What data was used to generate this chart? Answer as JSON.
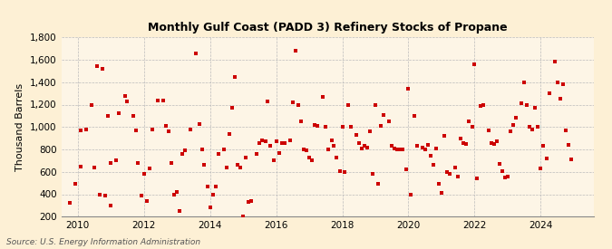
{
  "title": "Monthly Gulf Coast (PADD 3) Refinery Stocks of Propane",
  "ylabel": "Thousand Barrels",
  "source": "Source: U.S. Energy Information Administration",
  "background_color": "#fdf0d5",
  "plot_background_color": "#fdf5e6",
  "marker_color": "#cc0000",
  "marker": "s",
  "marker_size": 3.5,
  "ylim": [
    200,
    1800
  ],
  "yticks": [
    200,
    400,
    600,
    800,
    1000,
    1200,
    1400,
    1600,
    1800
  ],
  "xlim_start": 2009.5,
  "xlim_end": 2025.6,
  "xticks": [
    2010,
    2012,
    2014,
    2016,
    2018,
    2020,
    2022,
    2024
  ],
  "data": [
    [
      2009.75,
      320
    ],
    [
      2009.92,
      490
    ],
    [
      2010.08,
      650
    ],
    [
      2010.25,
      975
    ],
    [
      2010.42,
      1200
    ],
    [
      2010.58,
      1540
    ],
    [
      2010.75,
      1520
    ],
    [
      2010.92,
      1100
    ],
    [
      2010.08,
      970
    ],
    [
      2010.5,
      640
    ],
    [
      2010.67,
      400
    ],
    [
      2010.83,
      390
    ],
    [
      2011.0,
      680
    ],
    [
      2011.17,
      700
    ],
    [
      2011.25,
      1120
    ],
    [
      2011.42,
      1280
    ],
    [
      2011.5,
      1230
    ],
    [
      2011.67,
      1100
    ],
    [
      2011.75,
      970
    ],
    [
      2011.83,
      680
    ],
    [
      2011.92,
      390
    ],
    [
      2011.0,
      300
    ],
    [
      2012.0,
      580
    ],
    [
      2012.17,
      630
    ],
    [
      2012.25,
      980
    ],
    [
      2012.42,
      1240
    ],
    [
      2012.58,
      1240
    ],
    [
      2012.67,
      1010
    ],
    [
      2012.75,
      960
    ],
    [
      2012.83,
      680
    ],
    [
      2012.92,
      400
    ],
    [
      2012.08,
      340
    ],
    [
      2013.0,
      420
    ],
    [
      2013.17,
      760
    ],
    [
      2013.25,
      790
    ],
    [
      2013.42,
      980
    ],
    [
      2013.58,
      1660
    ],
    [
      2013.67,
      1030
    ],
    [
      2013.75,
      800
    ],
    [
      2013.83,
      660
    ],
    [
      2013.92,
      470
    ],
    [
      2013.08,
      250
    ],
    [
      2014.0,
      280
    ],
    [
      2014.17,
      470
    ],
    [
      2014.25,
      760
    ],
    [
      2014.42,
      800
    ],
    [
      2014.5,
      640
    ],
    [
      2014.58,
      940
    ],
    [
      2014.67,
      1170
    ],
    [
      2014.75,
      1450
    ],
    [
      2014.83,
      660
    ],
    [
      2014.92,
      640
    ],
    [
      2014.08,
      400
    ],
    [
      2015.0,
      200
    ],
    [
      2015.17,
      330
    ],
    [
      2015.25,
      340
    ],
    [
      2015.42,
      760
    ],
    [
      2015.5,
      860
    ],
    [
      2015.58,
      880
    ],
    [
      2015.67,
      870
    ],
    [
      2015.75,
      1230
    ],
    [
      2015.83,
      830
    ],
    [
      2015.92,
      700
    ],
    [
      2015.08,
      730
    ],
    [
      2016.0,
      870
    ],
    [
      2016.17,
      860
    ],
    [
      2016.25,
      860
    ],
    [
      2016.42,
      880
    ],
    [
      2016.5,
      1220
    ],
    [
      2016.58,
      1680
    ],
    [
      2016.67,
      1200
    ],
    [
      2016.75,
      1050
    ],
    [
      2016.83,
      800
    ],
    [
      2016.92,
      790
    ],
    [
      2016.08,
      770
    ],
    [
      2017.0,
      730
    ],
    [
      2017.17,
      1020
    ],
    [
      2017.25,
      1010
    ],
    [
      2017.42,
      1270
    ],
    [
      2017.5,
      1000
    ],
    [
      2017.58,
      800
    ],
    [
      2017.67,
      880
    ],
    [
      2017.75,
      830
    ],
    [
      2017.83,
      730
    ],
    [
      2017.92,
      610
    ],
    [
      2017.08,
      700
    ],
    [
      2018.0,
      1000
    ],
    [
      2018.17,
      1200
    ],
    [
      2018.25,
      1000
    ],
    [
      2018.42,
      930
    ],
    [
      2018.5,
      860
    ],
    [
      2018.58,
      810
    ],
    [
      2018.67,
      830
    ],
    [
      2018.75,
      820
    ],
    [
      2018.83,
      960
    ],
    [
      2018.92,
      580
    ],
    [
      2018.08,
      600
    ],
    [
      2019.0,
      1200
    ],
    [
      2019.17,
      1010
    ],
    [
      2019.25,
      1110
    ],
    [
      2019.42,
      1050
    ],
    [
      2019.5,
      830
    ],
    [
      2019.58,
      810
    ],
    [
      2019.67,
      800
    ],
    [
      2019.75,
      800
    ],
    [
      2019.83,
      800
    ],
    [
      2019.92,
      620
    ],
    [
      2019.08,
      490
    ],
    [
      2020.0,
      1340
    ],
    [
      2020.17,
      1100
    ],
    [
      2020.25,
      830
    ],
    [
      2020.42,
      820
    ],
    [
      2020.5,
      800
    ],
    [
      2020.58,
      840
    ],
    [
      2020.67,
      740
    ],
    [
      2020.75,
      660
    ],
    [
      2020.83,
      810
    ],
    [
      2020.92,
      490
    ],
    [
      2020.08,
      400
    ],
    [
      2021.0,
      410
    ],
    [
      2021.17,
      600
    ],
    [
      2021.25,
      580
    ],
    [
      2021.42,
      640
    ],
    [
      2021.5,
      560
    ],
    [
      2021.58,
      900
    ],
    [
      2021.67,
      860
    ],
    [
      2021.75,
      850
    ],
    [
      2021.83,
      1050
    ],
    [
      2021.92,
      1000
    ],
    [
      2021.08,
      920
    ],
    [
      2022.0,
      1560
    ],
    [
      2022.17,
      1190
    ],
    [
      2022.25,
      1200
    ],
    [
      2022.42,
      970
    ],
    [
      2022.5,
      860
    ],
    [
      2022.58,
      850
    ],
    [
      2022.67,
      870
    ],
    [
      2022.75,
      670
    ],
    [
      2022.83,
      610
    ],
    [
      2022.92,
      550
    ],
    [
      2022.08,
      540
    ],
    [
      2023.0,
      560
    ],
    [
      2023.17,
      1020
    ],
    [
      2023.25,
      1080
    ],
    [
      2023.42,
      1210
    ],
    [
      2023.5,
      1400
    ],
    [
      2023.58,
      1200
    ],
    [
      2023.67,
      1000
    ],
    [
      2023.75,
      980
    ],
    [
      2023.83,
      1170
    ],
    [
      2023.92,
      1000
    ],
    [
      2023.08,
      960
    ],
    [
      2024.0,
      630
    ],
    [
      2024.17,
      720
    ],
    [
      2024.25,
      1300
    ],
    [
      2024.42,
      1580
    ],
    [
      2024.5,
      1400
    ],
    [
      2024.58,
      1250
    ],
    [
      2024.67,
      1380
    ],
    [
      2024.75,
      970
    ],
    [
      2024.83,
      840
    ],
    [
      2024.92,
      710
    ],
    [
      2024.08,
      830
    ]
  ]
}
